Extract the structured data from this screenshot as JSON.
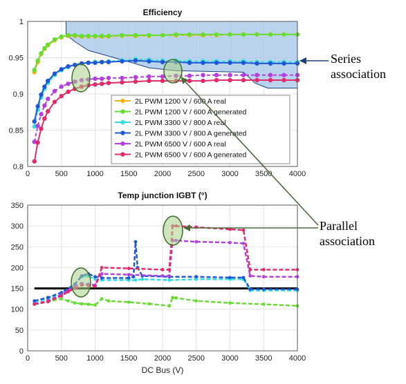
{
  "annotations": {
    "series_l1": "Series",
    "series_l2": "association",
    "parallel_l1": "Parallel",
    "parallel_l2": "association"
  },
  "chart_data": [
    {
      "type": "line",
      "title": "Efficiency",
      "xlabel": "",
      "ylabel": "",
      "xlim": [
        0,
        4000
      ],
      "ylim": [
        0.8,
        1.0
      ],
      "xticks": [
        "0",
        "500",
        "1000",
        "1500",
        "2000",
        "2500",
        "3000",
        "3500",
        "4000"
      ],
      "yticks": [
        "0.8",
        "0.85",
        "0.9",
        "0.95",
        "1"
      ],
      "grid": true,
      "legend_position": "lower-right",
      "x": [
        100,
        150,
        200,
        250,
        300,
        400,
        500,
        600,
        700,
        800,
        900,
        1000,
        1100,
        1200,
        1400,
        1600,
        1800,
        2000,
        2200,
        2400,
        2600,
        2800,
        3000,
        3200,
        3400,
        3600,
        3800,
        4000
      ],
      "series": [
        {
          "name": "2L    PWM 1200 V / 600 A real",
          "color": "#f5b312",
          "dash": true,
          "values": [
            0.93,
            0.944,
            0.955,
            0.962,
            0.967,
            0.974,
            0.978,
            0.98,
            0.98,
            0.979,
            0.979,
            0.979,
            0.979,
            0.979,
            0.98,
            0.98,
            0.98,
            0.981,
            0.981,
            0.981,
            0.981,
            0.981,
            0.982,
            0.982,
            0.982,
            0.982,
            0.982,
            0.982
          ]
        },
        {
          "name": "2L    PWM 1200 V / 600 A generated",
          "color": "#66dd33",
          "dash": false,
          "values": [
            0.933,
            0.946,
            0.956,
            0.963,
            0.968,
            0.975,
            0.979,
            0.981,
            0.981,
            0.98,
            0.98,
            0.98,
            0.98,
            0.98,
            0.981,
            0.981,
            0.981,
            0.981,
            0.982,
            0.982,
            0.982,
            0.982,
            0.982,
            0.982,
            0.982,
            0.982,
            0.982,
            0.982
          ]
        },
        {
          "name": "2L    PWM 3300 V / 800 A real",
          "color": "#33dddd",
          "dash": true,
          "values": [
            0.855,
            0.878,
            0.895,
            0.907,
            0.915,
            0.926,
            0.933,
            0.937,
            0.94,
            0.942,
            0.943,
            0.944,
            0.944,
            0.945,
            0.946,
            0.948,
            0.947,
            0.946,
            0.946,
            0.945,
            0.945,
            0.945,
            0.945,
            0.945,
            0.944,
            0.944,
            0.944,
            0.944
          ]
        },
        {
          "name": "2L    PWM 3300 V / 800 A generated",
          "color": "#1f57d8",
          "dash": false,
          "values": [
            0.862,
            0.883,
            0.899,
            0.91,
            0.918,
            0.928,
            0.934,
            0.938,
            0.94,
            0.942,
            0.943,
            0.943,
            0.944,
            0.944,
            0.945,
            0.946,
            0.945,
            0.944,
            0.944,
            0.943,
            0.943,
            0.943,
            0.943,
            0.943,
            0.942,
            0.942,
            0.942,
            0.942
          ]
        },
        {
          "name": "2L    PWM 6500 V / 600 A real",
          "color": "#b43fe0",
          "dash": true,
          "values": [
            0.834,
            0.856,
            0.872,
            0.884,
            0.893,
            0.904,
            0.91,
            0.914,
            0.917,
            0.919,
            0.92,
            0.921,
            0.921,
            0.922,
            0.922,
            0.923,
            0.924,
            0.924,
            0.925,
            0.925,
            0.926,
            0.926,
            0.926,
            0.926,
            0.926,
            0.926,
            0.926,
            0.926
          ]
        },
        {
          "name": "2L    PWM 6500 V / 600 A generated",
          "color": "#e22a6a",
          "dash": false,
          "values": [
            0.807,
            0.833,
            0.852,
            0.866,
            0.876,
            0.889,
            0.897,
            0.903,
            0.907,
            0.91,
            0.912,
            0.913,
            0.914,
            0.915,
            0.916,
            0.917,
            0.918,
            0.918,
            0.918,
            0.918,
            0.918,
            0.919,
            0.919,
            0.919,
            0.919,
            0.919,
            0.919,
            0.919
          ]
        }
      ],
      "shaded_region": {
        "label": "Series association",
        "color": "#a9c8e8"
      }
    },
    {
      "type": "line",
      "title": "Temp junction IGBT (°)",
      "xlabel": "DC Bus (V)",
      "ylabel": "",
      "xlim": [
        0,
        4000
      ],
      "ylim": [
        0,
        350
      ],
      "xticks": [
        "0",
        "500",
        "1000",
        "1500",
        "2000",
        "2500",
        "3000",
        "3500",
        "4000"
      ],
      "yticks": [
        "0",
        "50",
        "100",
        "150",
        "200",
        "250",
        "300",
        "350"
      ],
      "grid": true,
      "reference_line": {
        "y": 150,
        "color": "#000000"
      },
      "series": [
        {
          "name": "PWM 1200 V / 600 A generated",
          "color": "#66dd33",
          "x": [
            100,
            300,
            500,
            600,
            700,
            800,
            900,
            1000,
            1100,
            1200,
            1500,
            1800,
            2100,
            2150,
            2200,
            2500,
            3000,
            3500,
            4000
          ],
          "values": [
            112,
            118,
            125,
            120,
            115,
            113,
            112,
            110,
            125,
            120,
            117,
            113,
            108,
            128,
            127,
            120,
            115,
            112,
            108
          ]
        },
        {
          "name": "PWM 3300 V / 800 A real",
          "color": "#33dddd",
          "x": [
            100,
            300,
            500,
            700,
            800,
            900,
            1000,
            1100,
            1500,
            1600,
            1700,
            2100,
            2500,
            3000,
            3200,
            3300,
            3500,
            4000
          ],
          "values": [
            118,
            125,
            138,
            160,
            178,
            180,
            172,
            170,
            170,
            170,
            172,
            170,
            172,
            172,
            172,
            145,
            145,
            145
          ]
        },
        {
          "name": "PWM 3300 V / 800 A generated",
          "color": "#1f57d8",
          "x": [
            100,
            300,
            500,
            700,
            800,
            900,
            1000,
            1100,
            1500,
            1570,
            1600,
            1630,
            1700,
            2100,
            2500,
            3000,
            3200,
            3300,
            3500,
            4000
          ],
          "values": [
            120,
            128,
            140,
            160,
            180,
            185,
            178,
            175,
            175,
            178,
            262,
            200,
            180,
            178,
            178,
            176,
            176,
            148,
            148,
            148
          ]
        },
        {
          "name": "PWM 6500 V / 600 A real",
          "color": "#b43fe0",
          "x": [
            100,
            300,
            500,
            600,
            700,
            800,
            900,
            1000,
            1100,
            1500,
            2000,
            2100,
            2150,
            2200,
            2500,
            3000,
            3200,
            3300,
            3500,
            4000
          ],
          "values": [
            113,
            120,
            135,
            145,
            155,
            162,
            160,
            158,
            185,
            183,
            180,
            180,
            265,
            265,
            262,
            260,
            258,
            180,
            178,
            178
          ]
        },
        {
          "name": "PWM 6500 V / 600 A generated",
          "color": "#e22a6a",
          "x": [
            100,
            300,
            500,
            600,
            700,
            800,
            900,
            1000,
            1100,
            1500,
            2000,
            2100,
            2150,
            2200,
            2500,
            3000,
            3200,
            3300,
            3500,
            4000
          ],
          "values": [
            112,
            118,
            132,
            142,
            150,
            158,
            157,
            155,
            200,
            198,
            195,
            195,
            300,
            300,
            297,
            292,
            290,
            195,
            195,
            195
          ]
        }
      ],
      "annotation": "Parallel association"
    }
  ]
}
